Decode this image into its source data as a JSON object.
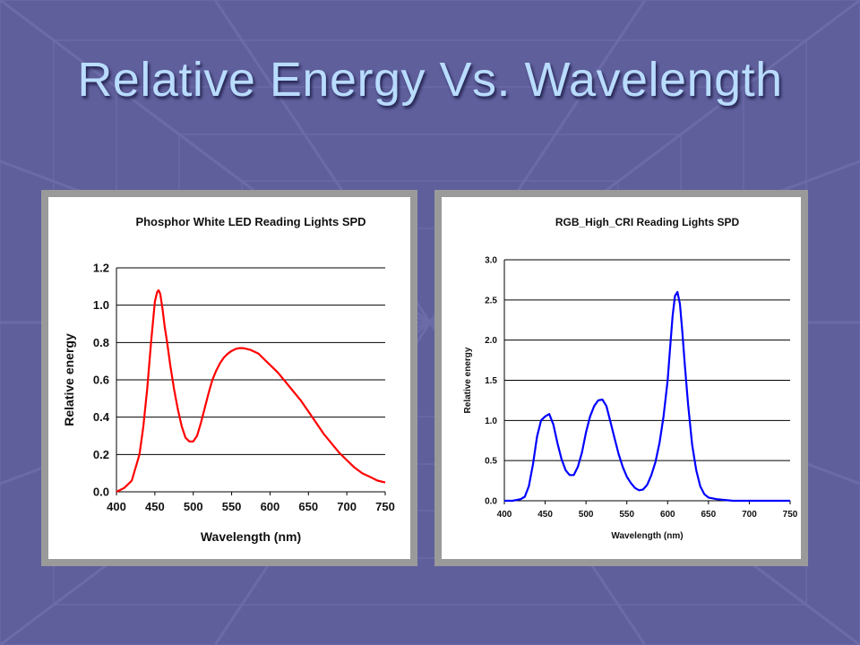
{
  "slide": {
    "title": "Relative Energy Vs. Wavelength"
  },
  "colors": {
    "background": "#5f5f9c",
    "title": "#b9dcff",
    "left_series": "#ff0000",
    "right_series": "#0000ff"
  },
  "chart_data": [
    {
      "type": "line",
      "title": "Phosphor White  LED  Reading Lights SPD",
      "xlabel": "Wavelength (nm)",
      "ylabel": "Relative energy",
      "xlim": [
        400,
        750
      ],
      "ylim": [
        0,
        1.2
      ],
      "xticks": [
        "400",
        "450",
        "500",
        "550",
        "600",
        "650",
        "700",
        "750"
      ],
      "yticks": [
        "0.0",
        "0.2",
        "0.4",
        "0.6",
        "0.8",
        "1.0",
        "1.2"
      ],
      "grid": "horizontal",
      "color": "#ff0000",
      "x": [
        400,
        410,
        420,
        430,
        435,
        440,
        445,
        450,
        453,
        455,
        457,
        460,
        463,
        466,
        470,
        475,
        480,
        485,
        490,
        495,
        500,
        505,
        510,
        515,
        520,
        525,
        530,
        535,
        540,
        545,
        550,
        555,
        560,
        565,
        570,
        575,
        580,
        585,
        590,
        595,
        600,
        610,
        620,
        630,
        640,
        650,
        660,
        670,
        680,
        690,
        700,
        710,
        720,
        730,
        740,
        750
      ],
      "y": [
        0.0,
        0.02,
        0.06,
        0.2,
        0.35,
        0.55,
        0.8,
        1.02,
        1.07,
        1.08,
        1.06,
        0.98,
        0.88,
        0.8,
        0.68,
        0.55,
        0.44,
        0.35,
        0.29,
        0.27,
        0.27,
        0.3,
        0.37,
        0.45,
        0.53,
        0.6,
        0.65,
        0.69,
        0.72,
        0.74,
        0.755,
        0.765,
        0.77,
        0.77,
        0.765,
        0.76,
        0.75,
        0.74,
        0.72,
        0.7,
        0.68,
        0.64,
        0.59,
        0.54,
        0.49,
        0.43,
        0.37,
        0.31,
        0.26,
        0.21,
        0.17,
        0.13,
        0.1,
        0.08,
        0.06,
        0.05
      ]
    },
    {
      "type": "line",
      "title": "RGB_High_CRI  Reading Lights SPD",
      "xlabel": "Wavelength (nm)",
      "ylabel": "Relative energy",
      "xlim": [
        400,
        750
      ],
      "ylim": [
        0,
        3.0
      ],
      "xticks": [
        "400",
        "450",
        "500",
        "550",
        "600",
        "650",
        "700",
        "750"
      ],
      "yticks": [
        "0.0",
        "0.5",
        "1.0",
        "1.5",
        "2.0",
        "2.5",
        "3.0"
      ],
      "grid": "horizontal",
      "color": "#0000ff",
      "x": [
        400,
        410,
        420,
        425,
        430,
        435,
        440,
        445,
        450,
        455,
        460,
        465,
        470,
        475,
        480,
        485,
        490,
        495,
        500,
        505,
        510,
        515,
        520,
        525,
        530,
        535,
        540,
        545,
        550,
        555,
        560,
        565,
        570,
        575,
        580,
        585,
        590,
        595,
        600,
        603,
        606,
        609,
        612,
        615,
        618,
        621,
        625,
        630,
        635,
        640,
        645,
        650,
        660,
        670,
        680,
        690,
        700,
        720,
        740,
        750
      ],
      "y": [
        0.0,
        0.0,
        0.02,
        0.05,
        0.18,
        0.45,
        0.8,
        1.0,
        1.05,
        1.08,
        0.95,
        0.72,
        0.52,
        0.38,
        0.32,
        0.32,
        0.42,
        0.6,
        0.85,
        1.05,
        1.18,
        1.25,
        1.26,
        1.18,
        0.98,
        0.78,
        0.58,
        0.42,
        0.3,
        0.22,
        0.16,
        0.13,
        0.14,
        0.2,
        0.32,
        0.48,
        0.72,
        1.05,
        1.5,
        1.9,
        2.3,
        2.55,
        2.6,
        2.45,
        2.1,
        1.7,
        1.2,
        0.7,
        0.38,
        0.18,
        0.08,
        0.04,
        0.02,
        0.01,
        0.0,
        0.0,
        0.0,
        0.0,
        0.0,
        0.0
      ]
    }
  ]
}
